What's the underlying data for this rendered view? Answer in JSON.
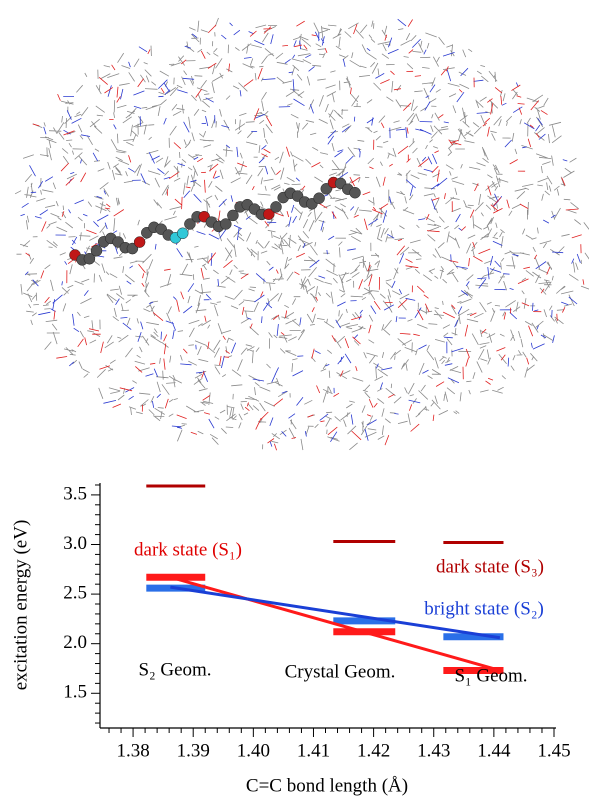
{
  "chart_data": {
    "type": "levels",
    "y_label": "excitation energy (eV)",
    "x_label": "C=C bond length (Å)",
    "xlim": [
      1.3745,
      1.45
    ],
    "ylim": [
      1.15,
      3.62
    ],
    "xticks": [
      1.38,
      1.39,
      {
        "value": 1.4,
        "label": "1.40"
      },
      1.41,
      1.42,
      1.43,
      1.44,
      1.45
    ],
    "xminorticks": [
      1.376,
      1.378,
      1.382,
      1.384,
      1.386,
      1.388,
      1.392,
      1.394,
      1.396,
      1.398,
      1.402,
      1.404,
      1.406,
      1.408,
      1.412,
      1.414,
      1.416,
      1.418,
      1.422,
      1.424,
      1.426,
      1.428,
      1.432,
      1.434,
      1.436,
      1.438,
      1.442,
      1.444,
      1.446,
      1.448
    ],
    "yticks": [
      1.5,
      {
        "value": 2,
        "label": "2.0"
      },
      2.5,
      {
        "value": 3,
        "label": "3.0"
      },
      3.5
    ],
    "yminorticks": [
      1.2,
      1.3,
      1.4,
      1.6,
      1.7,
      1.8,
      1.9,
      2.1,
      2.2,
      2.3,
      2.4,
      2.6,
      2.7,
      2.8,
      2.9,
      3.1,
      3.2,
      3.3,
      3.4,
      3.6
    ],
    "x_ranges": [
      [
        1.3822,
        1.392
      ],
      [
        1.4133,
        1.4236
      ],
      [
        1.4316,
        1.4416
      ]
    ],
    "series": [
      {
        "color": "#b00000",
        "values": [
          3.59,
          3.03,
          3.02
        ]
      },
      {
        "color": "#ff1a1a",
        "values": [
          2.67,
          2.12,
          1.73
        ]
      },
      {
        "color": "#2a6fe8",
        "values": [
          2.56,
          2.23,
          2.07
        ]
      }
    ],
    "trends": [
      {
        "color": "#ff1a1a",
        "x": [
          1.3862,
          1.441
        ],
        "values": [
          2.67,
          1.73
        ]
      },
      {
        "color": "#1a3fd6",
        "x": [
          1.3862,
          1.441
        ],
        "values": [
          2.57,
          2.06
        ]
      }
    ],
    "annotations": [
      {
        "text": "dark state (S₁)",
        "color": "#e00000"
      },
      {
        "text": "dark state (S₃)",
        "color": "#b00000"
      },
      {
        "text": "bright state (S₂)",
        "color": "#1a3fd6"
      },
      {
        "text": "S₂ Geom.",
        "color": "#000000"
      },
      {
        "text": "Crystal Geom.",
        "color": "#000000"
      },
      {
        "text": "S₁ Geom.",
        "color": "#000000"
      }
    ]
  }
}
